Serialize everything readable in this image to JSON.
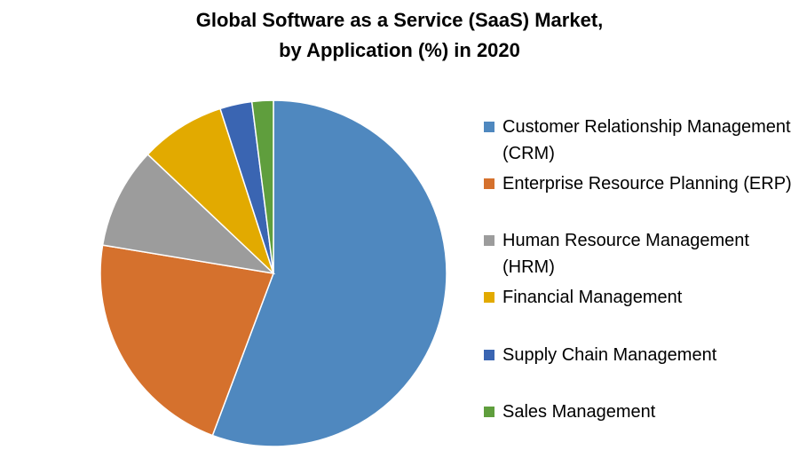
{
  "chart_data": {
    "type": "pie",
    "title_line1": "Global Software as a Service (SaaS) Market,",
    "title_line2": "by Application (%) in 2020",
    "legend_position": "right",
    "slices": [
      {
        "label": "Customer Relationship Management (CRM)",
        "value": 56,
        "color": "#4F88BF"
      },
      {
        "label": "Enterprise Resource Planning (ERP)",
        "value": 22,
        "color": "#D5712D"
      },
      {
        "label": "Human Resource Management (HRM)",
        "value": 9.5,
        "color": "#9C9C9C"
      },
      {
        "label": "Financial Management",
        "value": 8,
        "color": "#E2AA00"
      },
      {
        "label": "Supply Chain Management",
        "value": 3,
        "color": "#3A65B2"
      },
      {
        "label": "Sales Management",
        "value": 2,
        "color": "#5F9E3D"
      }
    ]
  }
}
